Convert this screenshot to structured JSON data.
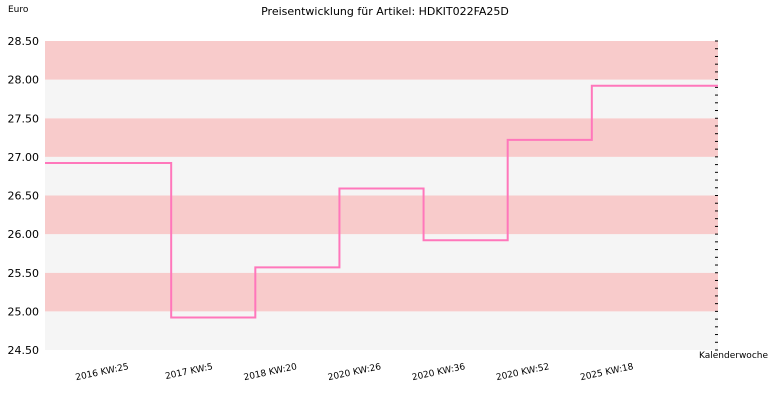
{
  "chart_data": {
    "type": "line",
    "step": true,
    "title": "Preisentwicklung für Artikel: HDKIT022FA25D",
    "xlabel": "Kalenderwoche",
    "ylabel": "Euro",
    "ylim": [
      24.5,
      28.5
    ],
    "yticks": [
      "24.50",
      "25.00",
      "25.50",
      "26.00",
      "26.50",
      "27.00",
      "27.50",
      "28.00",
      "28.50"
    ],
    "categories": [
      "2016 KW:25",
      "2017 KW:5",
      "2018 KW:20",
      "2020 KW:26",
      "2020 KW:36",
      "2020 KW:52",
      "2025 KW:18"
    ],
    "series": [
      {
        "values": [
          26.92,
          24.92,
          25.57,
          26.59,
          25.92,
          27.22,
          27.92
        ]
      }
    ],
    "grid": true,
    "band_colors": [
      "#f5f5f5",
      "#f8cbcb"
    ],
    "line_color": "#ff77bb"
  }
}
